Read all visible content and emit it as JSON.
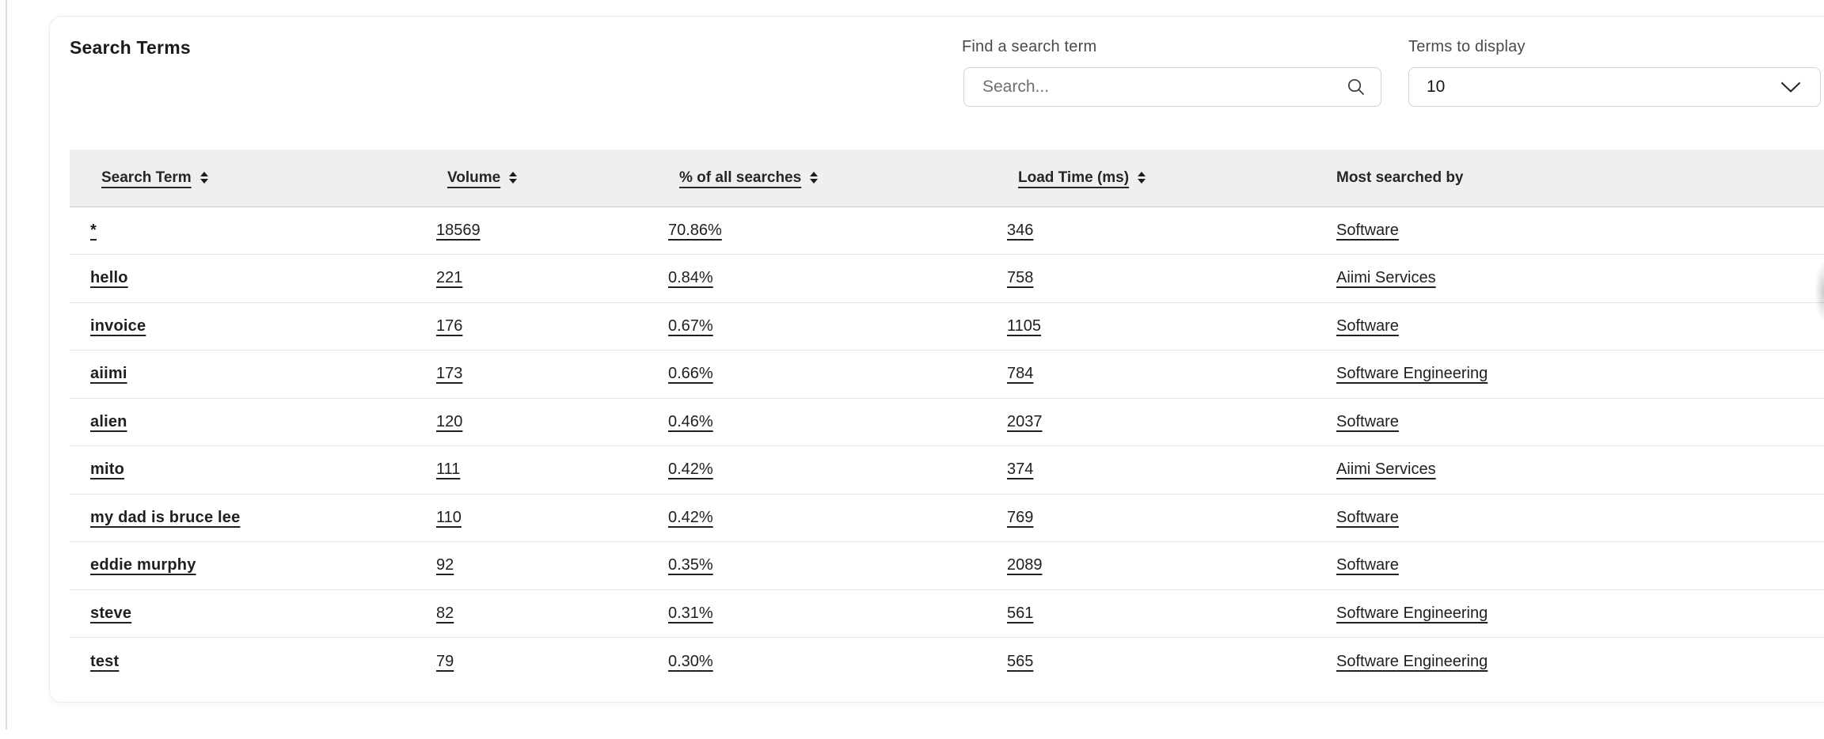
{
  "title": "Search Terms",
  "search_control": {
    "label": "Find a search term",
    "placeholder": "Search...",
    "value": ""
  },
  "terms_control": {
    "label": "Terms to display",
    "value": "10"
  },
  "table": {
    "columns": [
      {
        "label": "Search Term",
        "sortable": true
      },
      {
        "label": "Volume",
        "sortable": true
      },
      {
        "label": "% of all searches",
        "sortable": true
      },
      {
        "label": "Load Time (ms)",
        "sortable": true
      },
      {
        "label": "Most searched by",
        "sortable": false
      }
    ],
    "rows": [
      [
        "*",
        "18569",
        "70.86%",
        "346",
        "Software"
      ],
      [
        "hello",
        "221",
        "0.84%",
        "758",
        "Aiimi Services"
      ],
      [
        "invoice",
        "176",
        "0.67%",
        "1105",
        "Software"
      ],
      [
        "aiimi",
        "173",
        "0.66%",
        "784",
        "Software Engineering"
      ],
      [
        "alien",
        "120",
        "0.46%",
        "2037",
        "Software"
      ],
      [
        "mito",
        "111",
        "0.42%",
        "374",
        "Aiimi Services"
      ],
      [
        "my dad is bruce lee",
        "110",
        "0.42%",
        "769",
        "Software"
      ],
      [
        "eddie murphy",
        "92",
        "0.35%",
        "2089",
        "Software"
      ],
      [
        "steve",
        "82",
        "0.31%",
        "561",
        "Software Engineering"
      ],
      [
        "test",
        "79",
        "0.30%",
        "565",
        "Software Engineering"
      ]
    ]
  },
  "colors": {
    "header_row_bg": "#efefef",
    "text": "#1f1f1f",
    "row_divider": "#e3e3e3"
  }
}
